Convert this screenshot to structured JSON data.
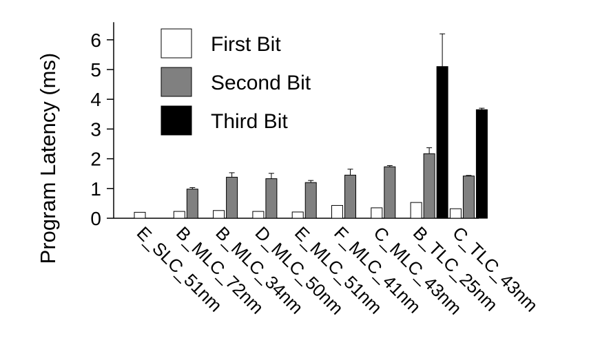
{
  "chart_data": {
    "type": "bar",
    "title": "",
    "xlabel": "",
    "ylabel": "Program Latency (ms)",
    "ylim": [
      0,
      6.5
    ],
    "yticks": [
      "0",
      "1",
      "2",
      "3",
      "4",
      "5",
      "6"
    ],
    "grid": false,
    "legend_position": "top-left",
    "categories": [
      "E_SLC_51nm",
      "B_MLC_72nm",
      "B_MLC_34nm",
      "D_MLC_50nm",
      "E_MLC_51nm",
      "F_MLC_41nm",
      "C_MLC_43nm",
      "B_TLC_25nm",
      "C_TLC_43nm"
    ],
    "series": [
      {
        "name": "First Bit",
        "color": "#ffffff",
        "values": [
          0.2,
          0.23,
          0.26,
          0.23,
          0.21,
          0.43,
          0.35,
          0.53,
          0.32
        ],
        "errors": [
          0.0,
          0.0,
          0.0,
          0.0,
          0.0,
          0.0,
          0.0,
          0.0,
          0.0
        ]
      },
      {
        "name": "Second Bit",
        "color": "#808080",
        "values": [
          null,
          0.98,
          1.38,
          1.33,
          1.2,
          1.45,
          1.73,
          2.17,
          1.42
        ],
        "errors": [
          null,
          0.05,
          0.15,
          0.18,
          0.07,
          0.2,
          0.04,
          0.2,
          0.02
        ]
      },
      {
        "name": "Third Bit",
        "color": "#000000",
        "values": [
          null,
          null,
          null,
          null,
          null,
          null,
          null,
          5.1,
          3.65
        ],
        "errors": [
          null,
          null,
          null,
          null,
          null,
          null,
          null,
          1.1,
          0.05
        ]
      }
    ]
  }
}
